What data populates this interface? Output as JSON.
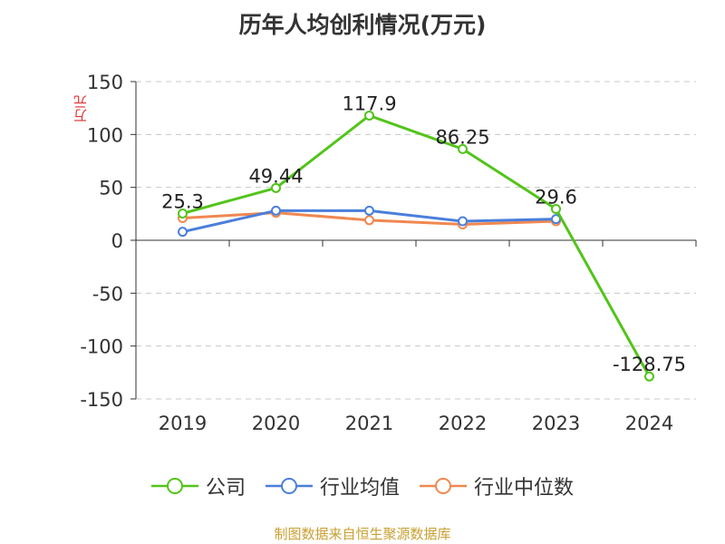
{
  "chart_data": {
    "type": "line",
    "title": "历年人均创利情况(万元)",
    "ylabel": "万元",
    "xlabel": "",
    "categories": [
      "2019",
      "2020",
      "2021",
      "2022",
      "2023",
      "2024"
    ],
    "ylim": [
      -150,
      150
    ],
    "yticks": [
      150,
      100,
      50,
      0,
      -50,
      -100,
      -150
    ],
    "grid": true,
    "legend_position": "bottom",
    "series": [
      {
        "name": "公司",
        "values": [
          25.3,
          49.44,
          117.9,
          86.25,
          29.6,
          -128.75
        ],
        "labels": [
          "25.3",
          "49.44",
          "117.9",
          "86.25",
          "29.6",
          "-128.75"
        ],
        "color": "#52c41a"
      },
      {
        "name": "行业均值",
        "values": [
          8,
          28,
          28,
          18,
          20,
          null
        ],
        "color": "#4a7fdc"
      },
      {
        "name": "行业中位数",
        "values": [
          21,
          26,
          19,
          15,
          18,
          null
        ],
        "color": "#f08850"
      }
    ]
  },
  "source": "制图数据来自恒生聚源数据库"
}
